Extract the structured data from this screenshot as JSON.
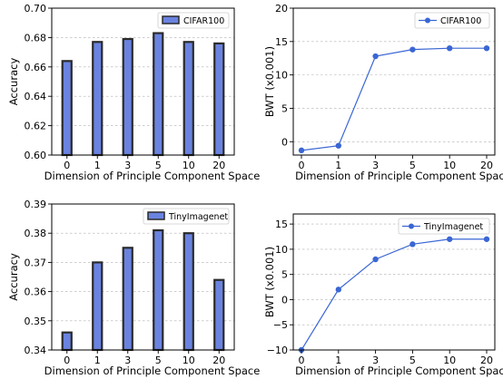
{
  "colors": {
    "bar_fill": "#6a83e0",
    "bar_edge": "#2a2a2a",
    "line": "#3a66d4"
  },
  "chart_data": [
    {
      "type": "bar",
      "categories": [
        "0",
        "1",
        "3",
        "5",
        "10",
        "20"
      ],
      "series": [
        {
          "name": "CIFAR100",
          "values": [
            0.664,
            0.677,
            0.679,
            0.683,
            0.677,
            0.676
          ]
        }
      ],
      "xlabel": "Dimension of Principle Component Space",
      "ylabel": "Accuracy",
      "ylim": [
        0.6,
        0.7
      ],
      "yticks": [
        0.6,
        0.62,
        0.64,
        0.66,
        0.68,
        0.7
      ],
      "ytick_labels": [
        "0.60",
        "0.62",
        "0.64",
        "0.66",
        "0.68",
        "0.70"
      ],
      "grid": "horizontal",
      "legend": "top-right"
    },
    {
      "type": "line",
      "categories": [
        "0",
        "1",
        "3",
        "5",
        "10",
        "20"
      ],
      "series": [
        {
          "name": "CIFAR100",
          "values": [
            -1.3,
            -0.6,
            12.8,
            13.8,
            14.0,
            14.0
          ]
        }
      ],
      "xlabel": "Dimension of Principle Component Space",
      "ylabel": "BWT (x0.001)",
      "ylim": [
        -2,
        20
      ],
      "yticks": [
        0,
        5,
        10,
        15,
        20
      ],
      "ytick_labels": [
        "0",
        "5",
        "10",
        "15",
        "20"
      ],
      "grid": "horizontal",
      "legend": "top-right"
    },
    {
      "type": "bar",
      "categories": [
        "0",
        "1",
        "3",
        "5",
        "10",
        "20"
      ],
      "series": [
        {
          "name": "TinyImagenet",
          "values": [
            0.346,
            0.37,
            0.375,
            0.381,
            0.38,
            0.364
          ]
        }
      ],
      "xlabel": "Dimension of Principle Component Space",
      "ylabel": "Accuracy",
      "ylim": [
        0.34,
        0.39
      ],
      "yticks": [
        0.34,
        0.35,
        0.36,
        0.37,
        0.38,
        0.39
      ],
      "ytick_labels": [
        "0.34",
        "0.35",
        "0.36",
        "0.37",
        "0.38",
        "0.39"
      ],
      "grid": "horizontal",
      "legend": "top-right"
    },
    {
      "type": "line",
      "categories": [
        "0",
        "1",
        "3",
        "5",
        "10",
        "20"
      ],
      "series": [
        {
          "name": "TinyImagenet",
          "values": [
            -10.0,
            2.0,
            8.0,
            11.0,
            12.0,
            12.0
          ]
        }
      ],
      "xlabel": "Dimension of Principle Component Space",
      "ylabel": "BWT (x0.001)",
      "ylim": [
        -10,
        17
      ],
      "yticks": [
        -10,
        -5,
        0,
        5,
        10,
        15
      ],
      "ytick_labels": [
        "−10",
        "−5",
        "0",
        "5",
        "10",
        "15"
      ],
      "grid": "horizontal",
      "legend": "top-right"
    }
  ]
}
